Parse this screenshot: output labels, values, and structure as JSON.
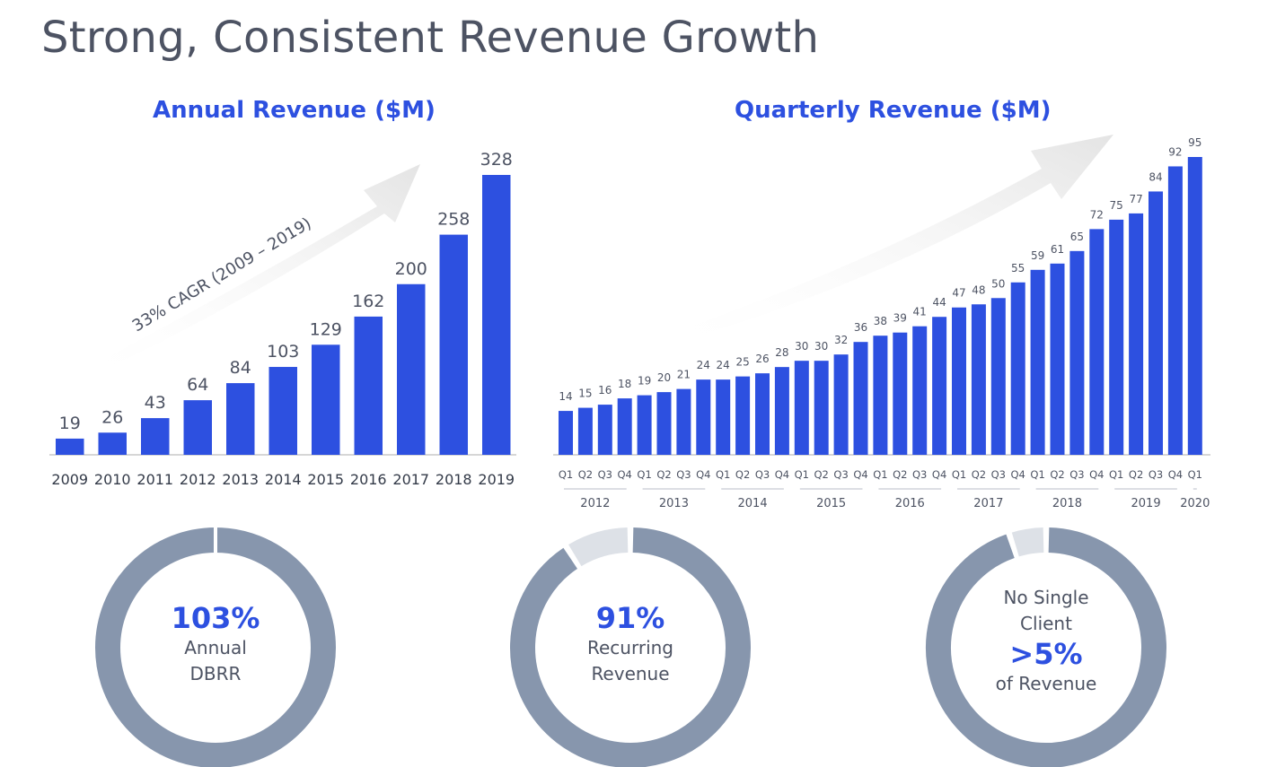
{
  "slide": {
    "title": "Strong, Consistent Revenue Growth"
  },
  "chart_data": [
    {
      "type": "bar",
      "title": "Annual Revenue ($M)",
      "categories": [
        "2009",
        "2010",
        "2011",
        "2012",
        "2013",
        "2014",
        "2015",
        "2016",
        "2017",
        "2018",
        "2019"
      ],
      "values": [
        19,
        26,
        43,
        64,
        84,
        103,
        129,
        162,
        200,
        258,
        328
      ],
      "ylim": [
        0,
        340
      ],
      "annotation": "33% CAGR (2009 – 2019)",
      "grid": false,
      "color": "#2d50e0"
    },
    {
      "type": "bar",
      "title": "Quarterly Revenue ($M)",
      "categories": [
        "Q1",
        "Q2",
        "Q3",
        "Q4",
        "Q1",
        "Q2",
        "Q3",
        "Q4",
        "Q1",
        "Q2",
        "Q3",
        "Q4",
        "Q1",
        "Q2",
        "Q3",
        "Q4",
        "Q1",
        "Q2",
        "Q3",
        "Q4",
        "Q1",
        "Q2",
        "Q3",
        "Q4",
        "Q1",
        "Q2",
        "Q3",
        "Q4",
        "Q1",
        "Q2",
        "Q3",
        "Q4",
        "Q1"
      ],
      "values": [
        14,
        15,
        16,
        18,
        19,
        20,
        21,
        24,
        24,
        25,
        26,
        28,
        30,
        30,
        32,
        36,
        38,
        39,
        41,
        44,
        47,
        48,
        50,
        55,
        59,
        61,
        65,
        72,
        75,
        77,
        84,
        92,
        95
      ],
      "years": [
        "2012",
        "2013",
        "2014",
        "2015",
        "2016",
        "2017",
        "2018",
        "2019",
        "2020"
      ],
      "ylim": [
        0,
        100
      ],
      "grid": false,
      "color": "#2d50e0"
    }
  ],
  "metrics": [
    {
      "value": "103%",
      "line1": "Annual",
      "line2": "DBRR",
      "fraction": 1.0
    },
    {
      "value": "91%",
      "line1": "Recurring",
      "line2": "Revenue",
      "fraction": 0.91
    },
    {
      "pre1": "No Single",
      "pre2": "Client",
      "value": ">5%",
      "line1": "of Revenue",
      "fraction": 0.95
    }
  ],
  "colors": {
    "bar": "#2d50e0",
    "ring": "#8796ad",
    "ring_light": "#dde1e7",
    "arrow": "#ececec",
    "text": "#4d5363"
  }
}
